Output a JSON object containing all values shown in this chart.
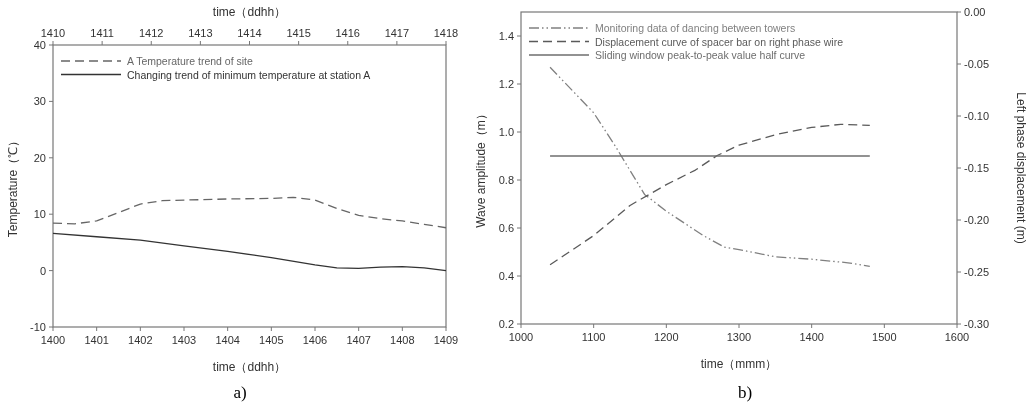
{
  "chart_data": [
    {
      "type": "line",
      "xlabel": "time（ddhh）",
      "x2label": "time（ddhh）",
      "ylabel": "Temperature（℃）",
      "xlim": [
        1400,
        1409
      ],
      "xticks": [
        1400,
        1401,
        1402,
        1403,
        1404,
        1405,
        1406,
        1407,
        1408,
        1409
      ],
      "x2lim": [
        1410,
        1418
      ],
      "x2ticks": [
        1410,
        1411,
        1412,
        1413,
        1414,
        1415,
        1416,
        1417,
        1418
      ],
      "ylim": [
        -10,
        40
      ],
      "yticks": [
        -10,
        0,
        10,
        20,
        30,
        40
      ],
      "legend": "top left",
      "annotations": [
        "a)"
      ],
      "series": [
        {
          "name": "A Temperature trend of site",
          "color": "#666666",
          "line_style": "dashed",
          "x": [
            1400,
            1400.5,
            1401,
            1401.5,
            1402,
            1402.5,
            1403,
            1404,
            1405,
            1405.5,
            1406,
            1406.5,
            1407,
            1407.5,
            1408,
            1408.5,
            1409
          ],
          "values": [
            8.4,
            8.3,
            8.8,
            10.3,
            11.8,
            12.4,
            12.5,
            12.7,
            12.8,
            13.0,
            12.5,
            11.0,
            9.8,
            9.2,
            8.8,
            8.2,
            7.6
          ]
        },
        {
          "name": "Changing trend of minimum temperature at station A",
          "color": "#333333",
          "line_style": "solid",
          "x": [
            1400,
            1401,
            1402,
            1403,
            1404,
            1405,
            1406,
            1406.5,
            1407,
            1407.5,
            1408,
            1408.5,
            1409
          ],
          "values": [
            6.6,
            6.0,
            5.4,
            4.4,
            3.4,
            2.3,
            1.0,
            0.5,
            0.4,
            0.6,
            0.7,
            0.5,
            0.0
          ]
        }
      ]
    },
    {
      "type": "line",
      "xlabel": "time（mmm）",
      "ylabel": "Wave amplitude（m）",
      "y2label": "Left phase displacement (m)",
      "xlim": [
        1000,
        1600
      ],
      "xticks": [
        1000,
        1100,
        1200,
        1300,
        1400,
        1500,
        1600
      ],
      "ylim": [
        0.2,
        1.5
      ],
      "yticks": [
        0.2,
        0.4,
        0.6,
        0.8,
        {
          "value": 1,
          "label": "1.0"
        },
        1.2,
        1.4
      ],
      "y2lim": [
        -0.3,
        0.0
      ],
      "y2ticks": [
        {
          "value": -0.3,
          "label": "-0.30"
        },
        {
          "value": -0.25,
          "label": "-0.25"
        },
        {
          "value": -0.2,
          "label": "-0.20"
        },
        {
          "value": -0.15,
          "label": "-0.15"
        },
        {
          "value": -0.1,
          "label": "-0.10"
        },
        {
          "value": -0.05,
          "label": "-0.05"
        },
        {
          "value": 0,
          "label": "0.00"
        }
      ],
      "legend": "top left",
      "annotations": [
        "b)"
      ],
      "series": [
        {
          "name": "Monitoring data of dancing between towers",
          "color": "#808080",
          "line_style": "dashdotdot",
          "x": [
            1040,
            1100,
            1130,
            1170,
            1200,
            1250,
            1280,
            1300,
            1350,
            1400,
            1450,
            1480
          ],
          "values": [
            1.27,
            1.08,
            0.94,
            0.74,
            0.67,
            0.57,
            0.52,
            0.51,
            0.48,
            0.47,
            0.455,
            0.44
          ]
        },
        {
          "name": "Displacement curve of spacer bar on right phase wire",
          "color": "#5a5a5a",
          "line_style": "dashed",
          "axis": "y2",
          "x": [
            1040,
            1100,
            1150,
            1200,
            1240,
            1270,
            1300,
            1350,
            1400,
            1440,
            1480
          ],
          "values": [
            -0.243,
            -0.215,
            -0.186,
            -0.166,
            -0.152,
            -0.138,
            -0.128,
            -0.118,
            -0.111,
            -0.108,
            -0.109
          ]
        },
        {
          "name": "Sliding window peak-to-peak value half curve",
          "color": "#6e6e6e",
          "line_style": "solid",
          "x": [
            1040,
            1480
          ],
          "values": [
            0.9,
            0.9
          ]
        }
      ]
    }
  ]
}
